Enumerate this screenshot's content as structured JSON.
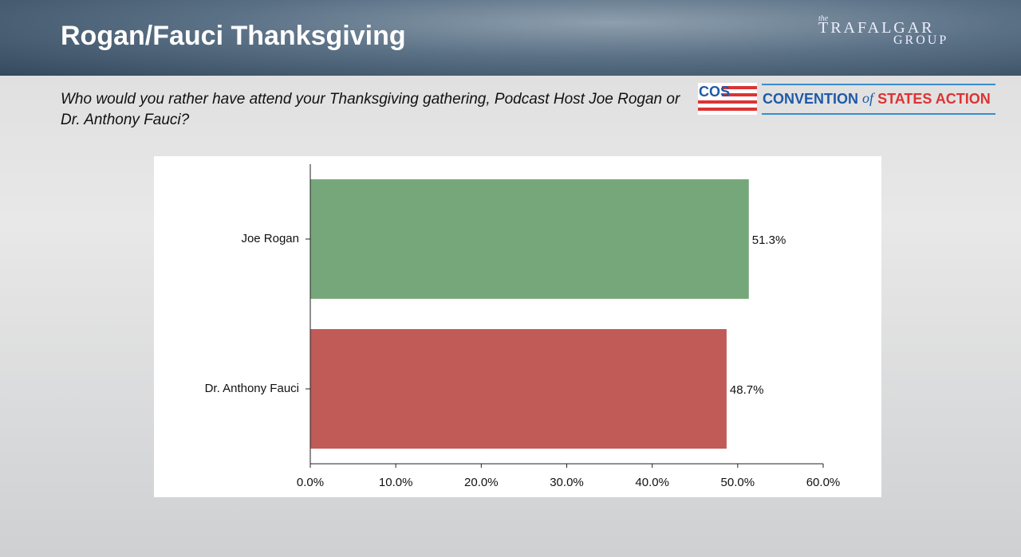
{
  "chart_data": {
    "type": "barh",
    "title": "Rogan/Fauci Thanksgiving",
    "subtitle": "Who would you rather have attend your Thanksgiving gathering, Podcast Host Joe Rogan or Dr. Anthony Fauci?",
    "categories": [
      "Joe Rogan",
      "Dr. Anthony Fauci"
    ],
    "values": [
      51.3,
      48.7
    ],
    "value_labels": [
      "51.3%",
      "48.7%"
    ],
    "colors": [
      "#76a77b",
      "#c05b58"
    ],
    "xlim": [
      0,
      60
    ],
    "xticks": [
      {
        "value": 0,
        "label": "0.0%"
      },
      {
        "value": 10,
        "label": "10.0%"
      },
      {
        "value": 20,
        "label": "20.0%"
      },
      {
        "value": 30,
        "label": "30.0%"
      },
      {
        "value": 40,
        "label": "40.0%"
      },
      {
        "value": 50,
        "label": "50.0%"
      },
      {
        "value": 60,
        "label": "60.0%"
      }
    ]
  },
  "logos": {
    "trafalgar": {
      "small": "the",
      "name": "TRAFALGAR",
      "group": "GROUP"
    },
    "cos": {
      "mark": "COS",
      "convention": "CONVENTION",
      "of": "of",
      "states": "STATES ACTION"
    }
  }
}
